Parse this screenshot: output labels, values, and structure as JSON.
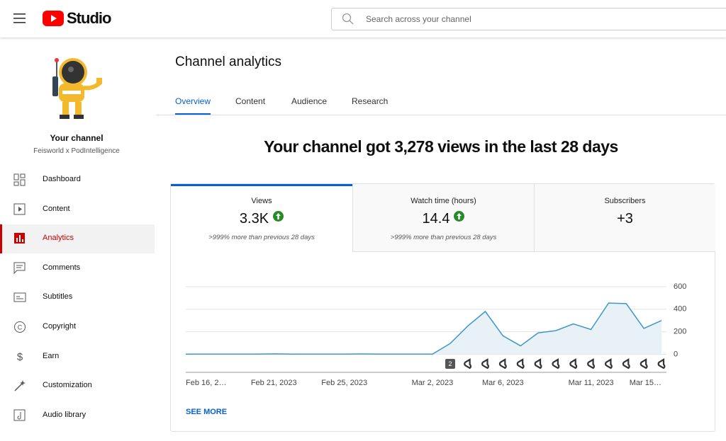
{
  "header": {
    "logo": "Studio",
    "search_placeholder": "Search across your channel"
  },
  "sidebar": {
    "channel_title": "Your channel",
    "channel_name": "Feisworld x PodIntelligence",
    "nav": [
      "Dashboard",
      "Content",
      "Analytics",
      "Comments",
      "Subtitles",
      "Copyright",
      "Earn",
      "Customization",
      "Audio library"
    ],
    "active": "Analytics"
  },
  "main": {
    "title": "Channel analytics",
    "tabs": [
      "Overview",
      "Content",
      "Audience",
      "Research"
    ],
    "active_tab": "Overview",
    "headline": "Your channel got 3,278 views in the last 28 days",
    "metrics": [
      {
        "label": "Views",
        "value": "3.3K",
        "trend": "up",
        "delta": ">999% more than previous 28 days"
      },
      {
        "label": "Watch time (hours)",
        "value": "14.4",
        "trend": "up",
        "delta": ">999% more than previous 28 days"
      },
      {
        "label": "Subscribers",
        "value": "+3"
      }
    ],
    "see_more": "SEE MORE"
  },
  "chart_data": {
    "type": "line",
    "categories": [
      "Feb 16, 2…",
      null,
      null,
      null,
      null,
      "Feb 21, 2023",
      null,
      null,
      null,
      "Feb 25, 2023",
      null,
      null,
      null,
      null,
      "Mar 2, 2023",
      null,
      null,
      null,
      "Mar 6, 2023",
      null,
      null,
      null,
      null,
      "Mar 11, 2023",
      null,
      null,
      null,
      "Mar 15…"
    ],
    "values": [
      2,
      2,
      2,
      2,
      2,
      4,
      2,
      2,
      2,
      2,
      3,
      2,
      2,
      2,
      2,
      95,
      250,
      380,
      165,
      75,
      190,
      210,
      270,
      220,
      455,
      450,
      230,
      300
    ],
    "color": "#3b98c8",
    "area_color": "#e8f1f6",
    "ylim": [
      -160,
      600
    ],
    "yticks": [
      0,
      200,
      400,
      600
    ],
    "grid": true,
    "annotation": "2"
  }
}
